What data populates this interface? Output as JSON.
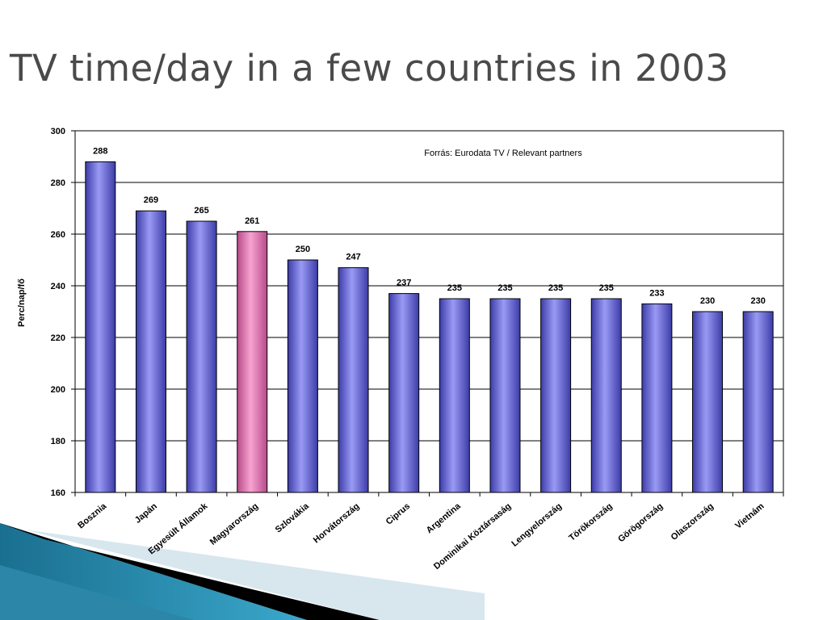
{
  "slide": {
    "title": "TV time/day in a few countries in 2003"
  },
  "chart_data": {
    "type": "bar",
    "title": "",
    "xlabel": "",
    "ylabel": "Perc/nap/fő",
    "ylim": [
      160,
      300
    ],
    "yticks": [
      160,
      180,
      200,
      220,
      240,
      260,
      280,
      300
    ],
    "grid": true,
    "annotation": "Forrás: Eurodata TV / Relevant partners",
    "categories": [
      "Bosznia",
      "Japán",
      "Egyesült Államok",
      "Magyarország",
      "Szlovákia",
      "Horvátország",
      "Ciprus",
      "Argentina",
      "Dominikai Köztársaság",
      "Lengyelország",
      "Törökország",
      "Görögország",
      "Olaszország",
      "Vietnám"
    ],
    "values": [
      288,
      269,
      265,
      261,
      250,
      247,
      237,
      235,
      235,
      235,
      235,
      233,
      230,
      230
    ],
    "highlight_category": "Magyarország",
    "colors": {
      "bar": "#8f8fef",
      "bar_dark": "#3c3ca8",
      "highlight": "#f28fc4",
      "highlight_dark": "#b84a8a",
      "gridline": "#000000"
    }
  }
}
